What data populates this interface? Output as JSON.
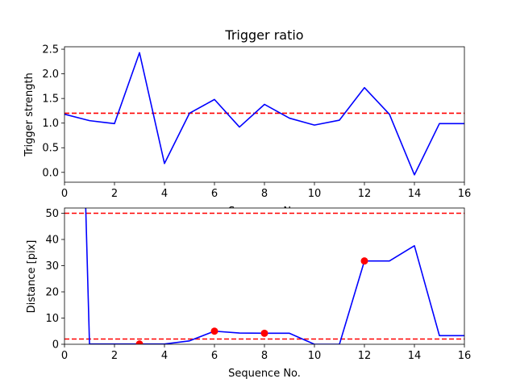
{
  "chart_data": [
    {
      "type": "line",
      "title": "Trigger ratio",
      "xlabel": "Sequence No.",
      "ylabel": "Trigger strength",
      "xlim": [
        0,
        16
      ],
      "ylim": [
        -0.2,
        2.55
      ],
      "xticks": [
        0,
        2,
        4,
        6,
        8,
        10,
        12,
        14,
        16
      ],
      "yticks": [
        0.0,
        0.5,
        1.0,
        1.5,
        2.0,
        2.5
      ],
      "ytick_labels": [
        "0.0",
        "0.5",
        "1.0",
        "1.5",
        "2.0",
        "2.5"
      ],
      "grid": false,
      "series": [
        {
          "color": "#0000ff",
          "x": [
            0,
            1,
            2,
            3,
            4,
            5,
            6,
            7,
            8,
            9,
            10,
            11,
            12,
            13,
            14,
            15,
            16
          ],
          "y": [
            1.18,
            1.05,
            0.99,
            2.43,
            0.18,
            1.2,
            1.48,
            0.92,
            1.38,
            1.1,
            0.96,
            1.06,
            1.72,
            1.18,
            -0.05,
            0.99,
            0.99
          ]
        }
      ],
      "hlines": [
        {
          "y": 1.2,
          "color": "#ff0000",
          "style": "dashed"
        }
      ],
      "markers": []
    },
    {
      "type": "line",
      "title": "",
      "xlabel": "Sequence No.",
      "ylabel": "Distance [pix]",
      "xlim": [
        0,
        16
      ],
      "ylim": [
        0,
        52
      ],
      "xticks": [
        0,
        2,
        4,
        6,
        8,
        10,
        12,
        14,
        16
      ],
      "yticks": [
        0,
        10,
        20,
        30,
        40,
        50
      ],
      "ytick_labels": [
        "0",
        "10",
        "20",
        "30",
        "40",
        "50"
      ],
      "grid": false,
      "series": [
        {
          "color": "#0000ff",
          "x": [
            0.85,
            1,
            2,
            3,
            4,
            5,
            6,
            7,
            8,
            9,
            10,
            11,
            12,
            13,
            14,
            15,
            16
          ],
          "y": [
            52,
            0.1,
            0.1,
            0.1,
            0.1,
            1.3,
            5.0,
            4.3,
            4.2,
            4.2,
            0.0,
            0.0,
            31.8,
            31.8,
            37.6,
            3.3,
            3.3
          ]
        }
      ],
      "hlines": [
        {
          "y": 50,
          "color": "#ff0000",
          "style": "dashed"
        },
        {
          "y": 2,
          "color": "#ff0000",
          "style": "dashed"
        }
      ],
      "markers": [
        {
          "x": 3,
          "y": 0.1,
          "color": "#ff0000"
        },
        {
          "x": 6,
          "y": 5.0,
          "color": "#ff0000"
        },
        {
          "x": 8,
          "y": 4.2,
          "color": "#ff0000"
        },
        {
          "x": 12,
          "y": 31.8,
          "color": "#ff0000"
        }
      ]
    }
  ]
}
